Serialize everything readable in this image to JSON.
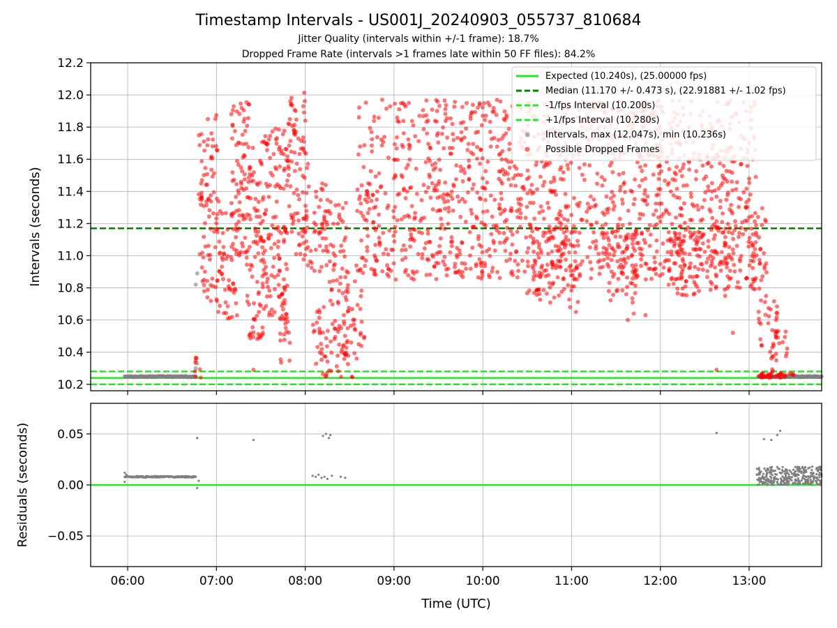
{
  "chart_data": [
    {
      "type": "scatter",
      "title": "Timestamp Intervals - US001J_20240903_055737_810684",
      "subtitle_lines": [
        "Jitter Quality (intervals within +/-1 frame): 18.7%",
        "Dropped Frame Rate (intervals >1 frames late within 50 FF files): 84.2%"
      ],
      "xlabel": "",
      "ylabel": "Intervals (seconds)",
      "xlim": [
        "05:35",
        "13:49"
      ],
      "ylim": [
        10.16,
        12.2
      ],
      "y_ticks": [
        "10.2",
        "10.4",
        "10.6",
        "10.8",
        "11.0",
        "11.2",
        "11.4",
        "11.6",
        "11.8",
        "12.0",
        "12.2"
      ],
      "grid": true,
      "legend_position": "upper right",
      "colors": {
        "expected": "#22e822",
        "median": "#008000",
        "bounds": "#22e822",
        "intervals": "#808080",
        "dropped": "#ff0000"
      },
      "reference_lines": [
        {
          "name": "Expected (10.240s), (25.00000 fps)",
          "y": 10.24,
          "style": "solid",
          "color": "#22e822"
        },
        {
          "name": "Median (11.170 +/- 0.473 s), (22.91881 +/- 1.02 fps)",
          "y": 11.17,
          "style": "dashed",
          "color": "#008000"
        },
        {
          "name": "-1/fps Interval (10.200s)",
          "y": 10.2,
          "style": "dashed",
          "color": "#22e822"
        },
        {
          "name": "+1/fps Interval (10.280s)",
          "y": 10.28,
          "style": "dashed",
          "color": "#22e822"
        }
      ],
      "series": [
        {
          "name": "Intervals, max (12.047s), min (10.236s)",
          "color": "#808080",
          "segments": [
            {
              "x_start": "05:58",
              "x_end": "06:46",
              "y": 10.248
            },
            {
              "x_start": "13:06",
              "x_end": "13:49",
              "y": 10.248
            }
          ],
          "points": [
            {
              "x": "06:46",
              "y": 10.82
            },
            {
              "x": "06:47",
              "y": 10.89
            },
            {
              "x": "06:47",
              "y": 10.33
            },
            {
              "x": "06:46",
              "y": 10.3
            }
          ]
        },
        {
          "name": "Possible Dropped Frames",
          "color": "#ff0000",
          "clusters": [
            {
              "x_start": "06:45",
              "x_end": "06:50",
              "y_min": 10.24,
              "y_max": 10.37
            },
            {
              "x_start": "06:48",
              "x_end": "07:01",
              "y_min": 10.7,
              "y_max": 11.9
            },
            {
              "x_start": "07:01",
              "x_end": "07:14",
              "y_min": 10.6,
              "y_max": 11.35
            },
            {
              "x_start": "07:10",
              "x_end": "07:25",
              "y_min": 11.0,
              "y_max": 11.97
            },
            {
              "x_start": "07:20",
              "x_end": "07:32",
              "y_min": 10.45,
              "y_max": 11.6
            },
            {
              "x_start": "07:30",
              "x_end": "07:48",
              "y_min": 10.6,
              "y_max": 11.8
            },
            {
              "x_start": "07:42",
              "x_end": "07:50",
              "y_min": 10.33,
              "y_max": 11.0
            },
            {
              "x_start": "07:48",
              "x_end": "08:02",
              "y_min": 11.0,
              "y_max": 12.05
            },
            {
              "x_start": "07:58",
              "x_end": "08:14",
              "y_min": 10.9,
              "y_max": 11.45
            },
            {
              "x_start": "08:05",
              "x_end": "08:20",
              "y_min": 10.24,
              "y_max": 10.7
            },
            {
              "x_start": "08:14",
              "x_end": "08:28",
              "y_min": 10.7,
              "y_max": 11.35
            },
            {
              "x_start": "08:20",
              "x_end": "08:32",
              "y_min": 10.24,
              "y_max": 10.6
            },
            {
              "x_start": "08:26",
              "x_end": "08:40",
              "y_min": 10.35,
              "y_max": 10.95
            },
            {
              "x_start": "08:35",
              "x_end": "13:05",
              "y_min": 10.85,
              "y_max": 11.97
            },
            {
              "x_start": "10:30",
              "x_end": "11:05",
              "y_min": 10.7,
              "y_max": 11.2
            },
            {
              "x_start": "11:25",
              "x_end": "11:45",
              "y_min": 10.7,
              "y_max": 11.2
            },
            {
              "x_start": "12:05",
              "x_end": "12:55",
              "y_min": 10.75,
              "y_max": 11.2
            },
            {
              "x_start": "13:00",
              "x_end": "13:12",
              "y_min": 10.7,
              "y_max": 11.3
            },
            {
              "x_start": "13:06",
              "x_end": "13:20",
              "y_min": 10.4,
              "y_max": 10.75
            },
            {
              "x_start": "13:15",
              "x_end": "13:26",
              "y_min": 10.24,
              "y_max": 10.6
            },
            {
              "x_start": "13:06",
              "x_end": "13:30",
              "y_min": 10.24,
              "y_max": 10.27
            }
          ],
          "points": [
            {
              "x": "12:38",
              "y": 10.29
            },
            {
              "x": "08:52",
              "y": 11.97
            },
            {
              "x": "10:00",
              "y": 11.87
            },
            {
              "x": "10:20",
              "y": 11.93
            },
            {
              "x": "11:38",
              "y": 10.6
            },
            {
              "x": "11:42",
              "y": 10.64
            },
            {
              "x": "10:59",
              "y": 10.68
            },
            {
              "x": "11:03",
              "y": 10.65
            },
            {
              "x": "09:53",
              "y": 11.05
            },
            {
              "x": "12:49",
              "y": 10.52
            },
            {
              "x": "13:00",
              "y": 11.7
            },
            {
              "x": "12:56",
              "y": 11.73
            },
            {
              "x": "07:25",
              "y": 10.29
            },
            {
              "x": "11:50",
              "y": 10.63
            },
            {
              "x": "09:48",
              "y": 10.95
            }
          ]
        }
      ]
    },
    {
      "type": "scatter",
      "xlabel": "Time (UTC)",
      "ylabel": "Residuals (seconds)",
      "xlim": [
        "05:35",
        "13:49"
      ],
      "ylim": [
        -0.08,
        0.08
      ],
      "y_ticks": [
        "−0.05",
        "0.00",
        "0.05"
      ],
      "x_ticks": [
        "06:00",
        "07:00",
        "08:00",
        "09:00",
        "10:00",
        "11:00",
        "12:00",
        "13:00"
      ],
      "grid": true,
      "zero_line_color": "#22e822",
      "series": [
        {
          "name": "",
          "color": "#808080",
          "segments": [
            {
              "x_start": "05:58",
              "x_end": "06:46",
              "y": 0.008
            }
          ],
          "points": [
            {
              "x": "05:58",
              "y": 0.012
            },
            {
              "x": "05:58",
              "y": 0.003
            },
            {
              "x": "05:59",
              "y": 0.01
            },
            {
              "x": "06:47",
              "y": 0.046
            },
            {
              "x": "06:47",
              "y": -0.003
            },
            {
              "x": "06:48",
              "y": 0.004
            },
            {
              "x": "07:25",
              "y": 0.044
            },
            {
              "x": "08:12",
              "y": 0.048
            },
            {
              "x": "08:14",
              "y": 0.05
            },
            {
              "x": "08:16",
              "y": 0.046
            },
            {
              "x": "08:17",
              "y": 0.049
            },
            {
              "x": "08:05",
              "y": 0.009
            },
            {
              "x": "08:07",
              "y": 0.008
            },
            {
              "x": "08:09",
              "y": 0.01
            },
            {
              "x": "08:11",
              "y": 0.007
            },
            {
              "x": "08:13",
              "y": 0.008
            },
            {
              "x": "08:15",
              "y": 0.006
            },
            {
              "x": "08:18",
              "y": 0.009
            },
            {
              "x": "08:24",
              "y": 0.008
            },
            {
              "x": "08:27",
              "y": 0.007
            },
            {
              "x": "12:38",
              "y": 0.051
            },
            {
              "x": "13:10",
              "y": 0.045
            },
            {
              "x": "13:15",
              "y": 0.044
            },
            {
              "x": "13:19",
              "y": 0.049
            },
            {
              "x": "13:21",
              "y": 0.053
            }
          ],
          "clusters": [
            {
              "x_start": "13:05",
              "x_end": "13:49",
              "y_min": 0.0,
              "y_max": 0.018
            }
          ]
        }
      ]
    }
  ]
}
